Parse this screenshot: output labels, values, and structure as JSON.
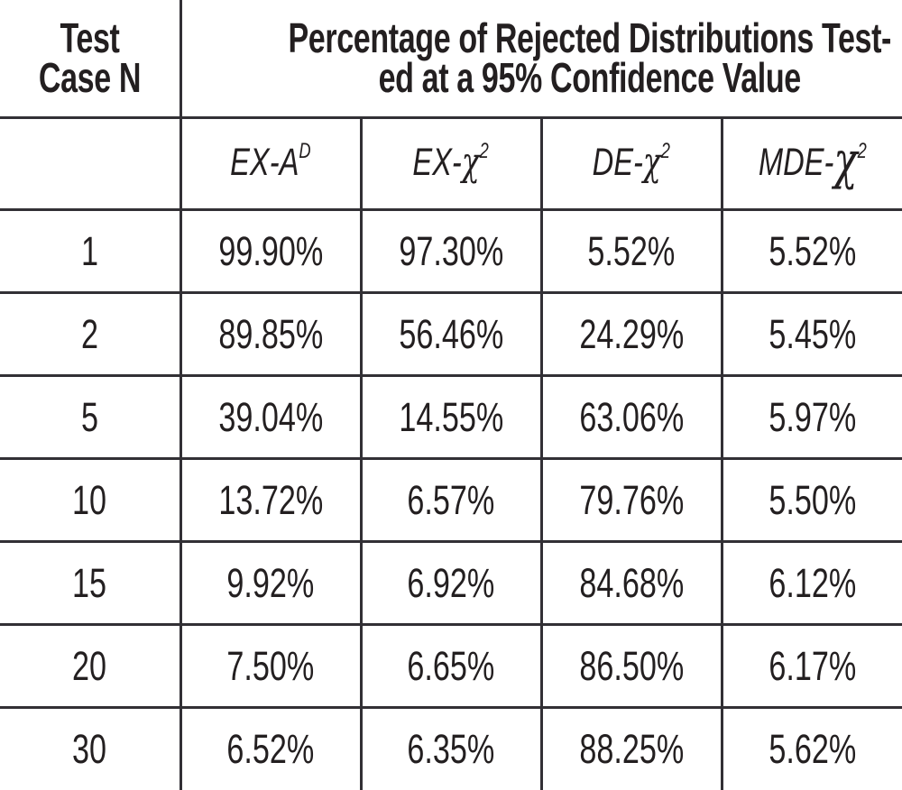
{
  "table": {
    "corner": {
      "line1": "Test",
      "line2": "Case N"
    },
    "title": {
      "line1": "Percentage of Rejected Distributions Test-",
      "line2": "ed at a 95% Confidence Value"
    },
    "columns": [
      {
        "pre": "EX-A",
        "sym": "",
        "sup": "D"
      },
      {
        "pre": "EX-",
        "sym": "χ",
        "sup": "2"
      },
      {
        "pre": "DE-",
        "sym": "χ",
        "sup": "2"
      },
      {
        "pre": "MDE-",
        "sym": "χ",
        "sup": "2"
      }
    ],
    "rows": [
      {
        "n": "1",
        "values": [
          "99.90%",
          "97.30%",
          "5.52%",
          "5.52%"
        ]
      },
      {
        "n": "2",
        "values": [
          "89.85%",
          "56.46%",
          "24.29%",
          "5.45%"
        ]
      },
      {
        "n": "5",
        "values": [
          "39.04%",
          "14.55%",
          "63.06%",
          "5.97%"
        ]
      },
      {
        "n": "10",
        "values": [
          "13.72%",
          "6.57%",
          "79.76%",
          "5.50%"
        ]
      },
      {
        "n": "15",
        "values": [
          "9.92%",
          "6.92%",
          "84.68%",
          "6.12%"
        ]
      },
      {
        "n": "20",
        "values": [
          "7.50%",
          "6.65%",
          "86.50%",
          "6.17%"
        ]
      },
      {
        "n": "30",
        "values": [
          "6.52%",
          "6.35%",
          "88.25%",
          "5.62%"
        ]
      }
    ]
  },
  "colors": {
    "text": "#231f20",
    "border": "#323035",
    "background": "#ffffff"
  },
  "chart_data": {
    "type": "table",
    "title": "Percentage of Rejected Distributions Tested at a 95% Confidence Value",
    "row_header": "Test Case N",
    "units": "percent rejected",
    "columns": [
      "EX-AD",
      "EX-chi2",
      "DE-chi2",
      "MDE-chi2"
    ],
    "x": [
      1,
      2,
      5,
      10,
      15,
      20,
      30
    ],
    "series": [
      {
        "name": "EX-AD",
        "values": [
          99.9,
          89.85,
          39.04,
          13.72,
          9.92,
          7.5,
          6.52
        ]
      },
      {
        "name": "EX-chi2",
        "values": [
          97.3,
          56.46,
          14.55,
          6.57,
          6.92,
          6.65,
          6.35
        ]
      },
      {
        "name": "DE-chi2",
        "values": [
          5.52,
          24.29,
          63.06,
          79.76,
          84.68,
          86.5,
          88.25
        ]
      },
      {
        "name": "MDE-chi2",
        "values": [
          5.52,
          5.45,
          5.97,
          5.5,
          6.12,
          6.17,
          5.62
        ]
      }
    ]
  }
}
